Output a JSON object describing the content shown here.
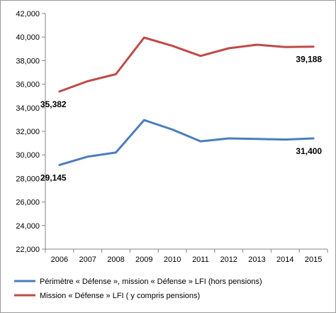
{
  "chart_data": {
    "type": "line",
    "title": "",
    "xlabel": "",
    "ylabel": "",
    "categories": [
      "2006",
      "2007",
      "2008",
      "2009",
      "2010",
      "2011",
      "2012",
      "2013",
      "2014",
      "2015"
    ],
    "ylim": [
      22000,
      42000
    ],
    "y_ticks": [
      "22,000",
      "24,000",
      "26,000",
      "28,000",
      "30,000",
      "32,000",
      "34,000",
      "36,000",
      "38,000",
      "40,000",
      "42,000"
    ],
    "y_tick_values": [
      22000,
      24000,
      26000,
      28000,
      30000,
      32000,
      34000,
      36000,
      38000,
      40000,
      42000
    ],
    "grid": false,
    "legend_position": "bottom",
    "series": [
      {
        "name": "Périmètre « Défense », mission « Défense » LFI (hors pensions)",
        "color": "#4a7ebb",
        "values": [
          29145,
          29850,
          30200,
          32950,
          32150,
          31150,
          31400,
          31350,
          31300,
          31400
        ],
        "labels": [
          {
            "index": 0,
            "text": "29,145"
          },
          {
            "index": 9,
            "text": "31,400"
          }
        ]
      },
      {
        "name": "Mission « Défense » LFI ( y compris pensions)",
        "color": "#be4b48",
        "values": [
          35382,
          36250,
          36850,
          39950,
          39250,
          38400,
          39050,
          39350,
          39150,
          39188
        ],
        "labels": [
          {
            "index": 0,
            "text": "35,382"
          },
          {
            "index": 9,
            "text": "39,188"
          }
        ]
      }
    ]
  }
}
